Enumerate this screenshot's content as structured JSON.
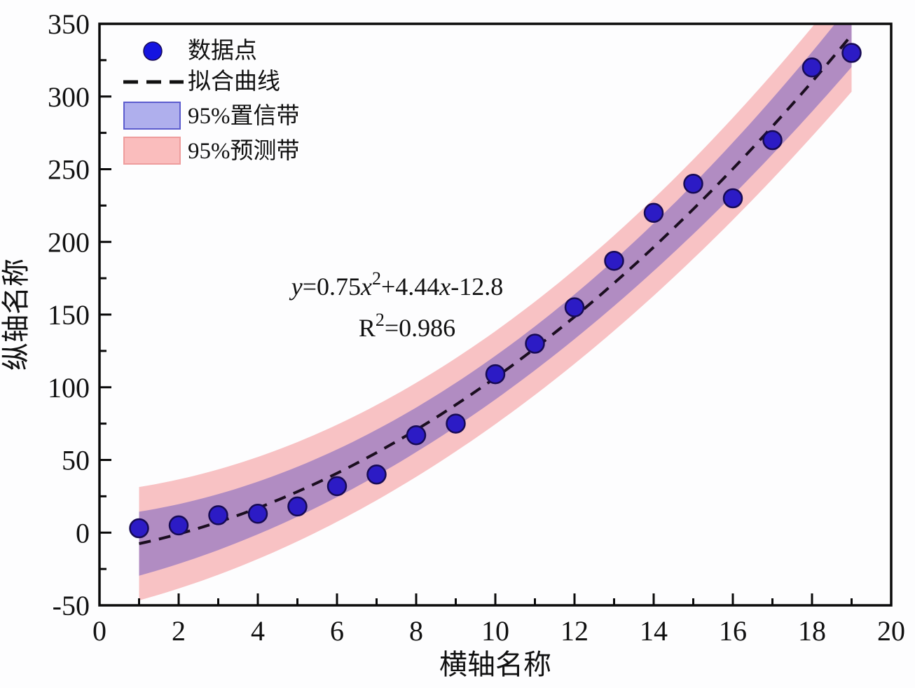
{
  "chart_data": {
    "type": "scatter",
    "title": "",
    "xlabel": "横轴名称",
    "ylabel": "纵轴名称",
    "xlim": [
      0,
      20
    ],
    "ylim": [
      -50,
      350
    ],
    "grid": false,
    "legend_position": "top-left-inside",
    "x_ticks_major": [
      0,
      2,
      4,
      6,
      8,
      10,
      12,
      14,
      16,
      18,
      20
    ],
    "x_ticks_minor": [
      1,
      3,
      5,
      7,
      9,
      11,
      13,
      15,
      17,
      19
    ],
    "y_ticks_major": [
      -50,
      0,
      50,
      100,
      150,
      200,
      250,
      300,
      350
    ],
    "y_ticks_minor": [
      -25,
      25,
      75,
      125,
      175,
      225,
      275,
      325
    ],
    "points": {
      "x": [
        1,
        2,
        3,
        4,
        5,
        6,
        7,
        8,
        9,
        10,
        11,
        12,
        13,
        14,
        15,
        16,
        17,
        18,
        19
      ],
      "y": [
        3,
        5,
        12,
        13,
        18,
        32,
        40,
        67,
        75,
        109,
        130,
        155,
        187,
        220,
        240,
        230,
        270,
        320,
        330
      ]
    },
    "fit": {
      "type": "quadratic",
      "coefficients": {
        "a": 0.75,
        "b": 4.44,
        "c": -12.8
      },
      "equation_display": "y=0.75x²+4.44x-12.8",
      "r_squared_display": "R²=0.986",
      "r_squared": 0.986,
      "x_range": [
        1,
        19
      ]
    },
    "equation_parts": [
      {
        "t": "y",
        "i": true
      },
      {
        "t": "=0.75"
      },
      {
        "t": "x",
        "i": true
      },
      {
        "t": "2",
        "s": true
      },
      {
        "t": "+4.44"
      },
      {
        "t": "x",
        "i": true
      },
      {
        "t": "-12.8"
      }
    ],
    "r2_parts": [
      {
        "t": "R"
      },
      {
        "t": "2",
        "s": true
      },
      {
        "t": "=0.986"
      }
    ],
    "bands": {
      "confidence": {
        "label": "95%置信带",
        "x_range": [
          1,
          19
        ],
        "half_width_center": 15,
        "half_width_ends": 22
      },
      "prediction": {
        "label": "95%预测带",
        "x_range": [
          1,
          19
        ],
        "half_width_center": 32,
        "half_width_ends": 39
      }
    },
    "legend": {
      "items": [
        {
          "label": "数据点",
          "kind": "marker"
        },
        {
          "label": "拟合曲线",
          "kind": "dashed-line"
        },
        {
          "label": "95%置信带",
          "kind": "band-swatch-blue"
        },
        {
          "label": "95%预测带",
          "kind": "band-swatch-pink"
        }
      ]
    },
    "colors": {
      "point_fill": "#2c1bc5",
      "point_stroke": "#170a55",
      "legend_marker_fill": "#1414e0",
      "fit_line": "#1b0e20",
      "legend_fit_line": "#111111",
      "ci_band_fill": "#b18cc2",
      "pi_band_fill": "#f8c2c4",
      "ci_legend_fill": "#afafed",
      "ci_legend_stroke": "#5c5cce",
      "pi_legend_fill": "#fabdbd",
      "pi_legend_stroke": "#ee9c9c",
      "axis": "#0a0a0a"
    }
  }
}
